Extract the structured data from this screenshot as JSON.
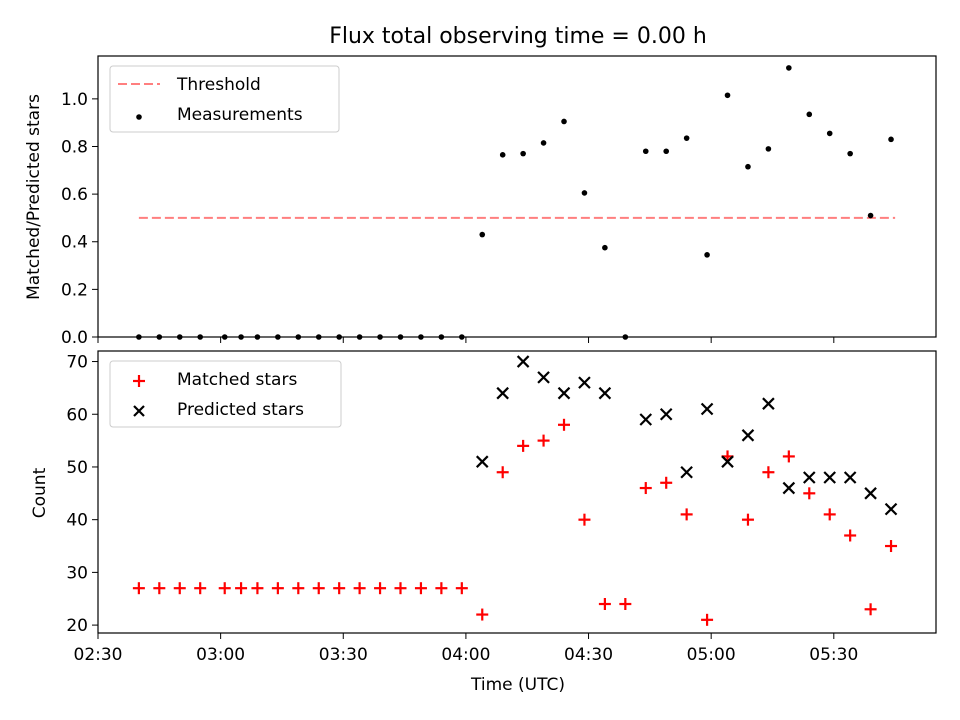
{
  "chart_data": [
    {
      "type": "scatter",
      "title": "Flux total observing time = 0.00 h",
      "xlabel": "",
      "ylabel": "Matched/Predicted stars",
      "xlim": [
        "02:30",
        "05:55"
      ],
      "ylim": [
        0,
        1.18
      ],
      "yticks": [
        0.0,
        0.2,
        0.4,
        0.6,
        0.8,
        1.0
      ],
      "ytick_labels": [
        "0.0",
        "0.2",
        "0.4",
        "0.6",
        "0.8",
        "1.0"
      ],
      "xtick_labels_shown": false,
      "legend": "upper left",
      "threshold": {
        "name": "Threshold",
        "value": 0.5,
        "x_range": [
          "02:40",
          "05:45"
        ],
        "color": "#ff7f7f",
        "style": "dashed"
      },
      "series": [
        {
          "name": "Measurements",
          "color": "#000000",
          "marker": "dot",
          "points": [
            [
              "02:40",
              0
            ],
            [
              "02:45",
              0
            ],
            [
              "02:50",
              0
            ],
            [
              "02:55",
              0
            ],
            [
              "03:01",
              0
            ],
            [
              "03:05",
              0
            ],
            [
              "03:09",
              0
            ],
            [
              "03:14",
              0
            ],
            [
              "03:19",
              0
            ],
            [
              "03:24",
              0
            ],
            [
              "03:29",
              0
            ],
            [
              "03:34",
              0
            ],
            [
              "03:39",
              0
            ],
            [
              "03:44",
              0
            ],
            [
              "03:49",
              0
            ],
            [
              "03:54",
              0
            ],
            [
              "03:59",
              0
            ],
            [
              "04:04",
              0.43
            ],
            [
              "04:09",
              0.765
            ],
            [
              "04:14",
              0.77
            ],
            [
              "04:19",
              0.815
            ],
            [
              "04:24",
              0.905
            ],
            [
              "04:29",
              0.605
            ],
            [
              "04:34",
              0.375
            ],
            [
              "04:39",
              0
            ],
            [
              "04:44",
              0.78
            ],
            [
              "04:49",
              0.78
            ],
            [
              "04:54",
              0.835
            ],
            [
              "04:59",
              0.345
            ],
            [
              "05:04",
              1.015
            ],
            [
              "05:09",
              0.715
            ],
            [
              "05:14",
              0.79
            ],
            [
              "05:19",
              1.13
            ],
            [
              "05:24",
              0.935
            ],
            [
              "05:29",
              0.855
            ],
            [
              "05:34",
              0.77
            ],
            [
              "05:39",
              0.51
            ],
            [
              "05:44",
              0.83
            ]
          ]
        }
      ]
    },
    {
      "type": "scatter",
      "title": "",
      "xlabel": "Time (UTC)",
      "ylabel": "Count",
      "xlim": [
        "02:30",
        "05:55"
      ],
      "ylim": [
        18.5,
        72
      ],
      "yticks": [
        20,
        30,
        40,
        50,
        60,
        70
      ],
      "ytick_labels": [
        "20",
        "30",
        "40",
        "50",
        "60",
        "70"
      ],
      "xticks": [
        "02:30",
        "03:00",
        "03:30",
        "04:00",
        "04:30",
        "05:00",
        "05:30"
      ],
      "xtick_labels": [
        "02:30",
        "03:00",
        "03:30",
        "04:00",
        "04:30",
        "05:00",
        "05:30"
      ],
      "legend": "upper left",
      "series": [
        {
          "name": "Matched stars",
          "color": "#ff0000",
          "marker": "plus",
          "points": [
            [
              "02:40",
              27
            ],
            [
              "02:45",
              27
            ],
            [
              "02:50",
              27
            ],
            [
              "02:55",
              27
            ],
            [
              "03:01",
              27
            ],
            [
              "03:05",
              27
            ],
            [
              "03:09",
              27
            ],
            [
              "03:14",
              27
            ],
            [
              "03:19",
              27
            ],
            [
              "03:24",
              27
            ],
            [
              "03:29",
              27
            ],
            [
              "03:34",
              27
            ],
            [
              "03:39",
              27
            ],
            [
              "03:44",
              27
            ],
            [
              "03:49",
              27
            ],
            [
              "03:54",
              27
            ],
            [
              "03:59",
              27
            ],
            [
              "04:04",
              22
            ],
            [
              "04:09",
              49
            ],
            [
              "04:14",
              54
            ],
            [
              "04:19",
              55
            ],
            [
              "04:24",
              58
            ],
            [
              "04:29",
              40
            ],
            [
              "04:34",
              24
            ],
            [
              "04:39",
              24
            ],
            [
              "04:44",
              46
            ],
            [
              "04:49",
              47
            ],
            [
              "04:54",
              41
            ],
            [
              "04:59",
              21
            ],
            [
              "05:04",
              52
            ],
            [
              "05:09",
              40
            ],
            [
              "05:14",
              49
            ],
            [
              "05:19",
              52
            ],
            [
              "05:24",
              45
            ],
            [
              "05:29",
              41
            ],
            [
              "05:34",
              37
            ],
            [
              "05:39",
              23
            ],
            [
              "05:44",
              35
            ]
          ]
        },
        {
          "name": "Predicted stars",
          "color": "#000000",
          "marker": "x",
          "points": [
            [
              "04:04",
              51
            ],
            [
              "04:09",
              64
            ],
            [
              "04:14",
              70
            ],
            [
              "04:19",
              67
            ],
            [
              "04:24",
              64
            ],
            [
              "04:29",
              66
            ],
            [
              "04:34",
              64
            ],
            [
              "04:44",
              59
            ],
            [
              "04:49",
              60
            ],
            [
              "04:54",
              49
            ],
            [
              "04:59",
              61
            ],
            [
              "05:04",
              51
            ],
            [
              "05:09",
              56
            ],
            [
              "05:14",
              62
            ],
            [
              "05:19",
              46
            ],
            [
              "05:24",
              48
            ],
            [
              "05:29",
              48
            ],
            [
              "05:34",
              48
            ],
            [
              "05:39",
              45
            ],
            [
              "05:44",
              42
            ]
          ]
        }
      ]
    }
  ]
}
